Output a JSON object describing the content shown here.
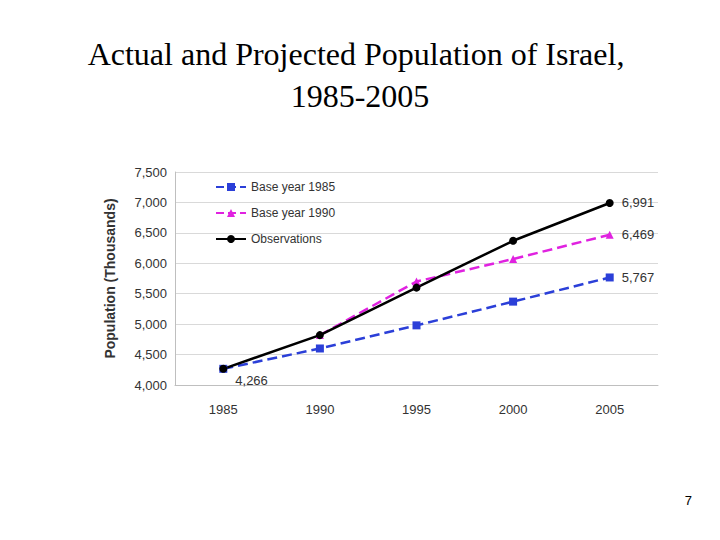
{
  "chart_data": {
    "type": "line",
    "title": "Actual and Projected Population of Israel, 1985-2005",
    "y_label": "Population (Thousands)",
    "categories": [
      "1985",
      "1990",
      "1995",
      "2000",
      "2005"
    ],
    "series": [
      {
        "name": "Base year 1985",
        "color": "#2b3fd8",
        "marker": "square",
        "line_style": "dashed",
        "values": [
          4266,
          4600,
          4980,
          5370,
          5767
        ],
        "value_labels": [
          null,
          null,
          null,
          null,
          "5,767"
        ]
      },
      {
        "name": "Base year 1990",
        "color": "#e022e0",
        "marker": "triangle",
        "line_style": "dashed",
        "values": [
          null,
          4820,
          5700,
          6070,
          6469
        ],
        "value_labels": [
          null,
          null,
          null,
          null,
          "6,469"
        ]
      },
      {
        "name": "Observations",
        "color": "#000000",
        "marker": "circle",
        "line_style": "solid",
        "values": [
          4266,
          4820,
          5600,
          6370,
          6991
        ],
        "value_labels": [
          "4,266",
          null,
          null,
          null,
          "6,991"
        ]
      }
    ],
    "ylim": [
      4000,
      7500
    ],
    "yticks": [
      {
        "value": 4000,
        "label": "4,000"
      },
      {
        "value": 4500,
        "label": "4,500"
      },
      {
        "value": 5000,
        "label": "5,000"
      },
      {
        "value": 5500,
        "label": "5,500"
      },
      {
        "value": 6000,
        "label": "6,000"
      },
      {
        "value": 6500,
        "label": "6,500"
      },
      {
        "value": 7000,
        "label": "7,000"
      },
      {
        "value": 7500,
        "label": "7,500"
      }
    ],
    "grid": true,
    "legend": "upper left",
    "annotations": [
      "7"
    ]
  }
}
